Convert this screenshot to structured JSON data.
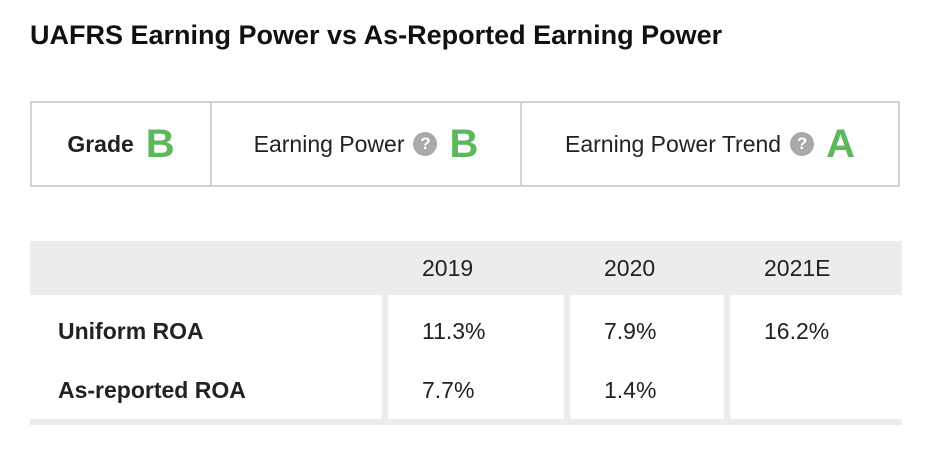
{
  "title": "UAFRS Earning Power vs As-Reported Earning Power",
  "grades": {
    "grade_label": "Grade",
    "grade_value": "B",
    "earning_power_label": "Earning Power",
    "earning_power_value": "B",
    "trend_label": "Earning Power Trend",
    "trend_value": "A",
    "help_glyph": "?",
    "grade_color": "#5cb85c"
  },
  "table": {
    "columns": [
      "",
      "2019",
      "2020",
      "2021E"
    ],
    "rows": [
      {
        "label": "Uniform ROA",
        "values": [
          "11.3%",
          "7.9%",
          "16.2%"
        ]
      },
      {
        "label": "As-reported ROA",
        "values": [
          "7.7%",
          "1.4%",
          ""
        ]
      }
    ]
  }
}
